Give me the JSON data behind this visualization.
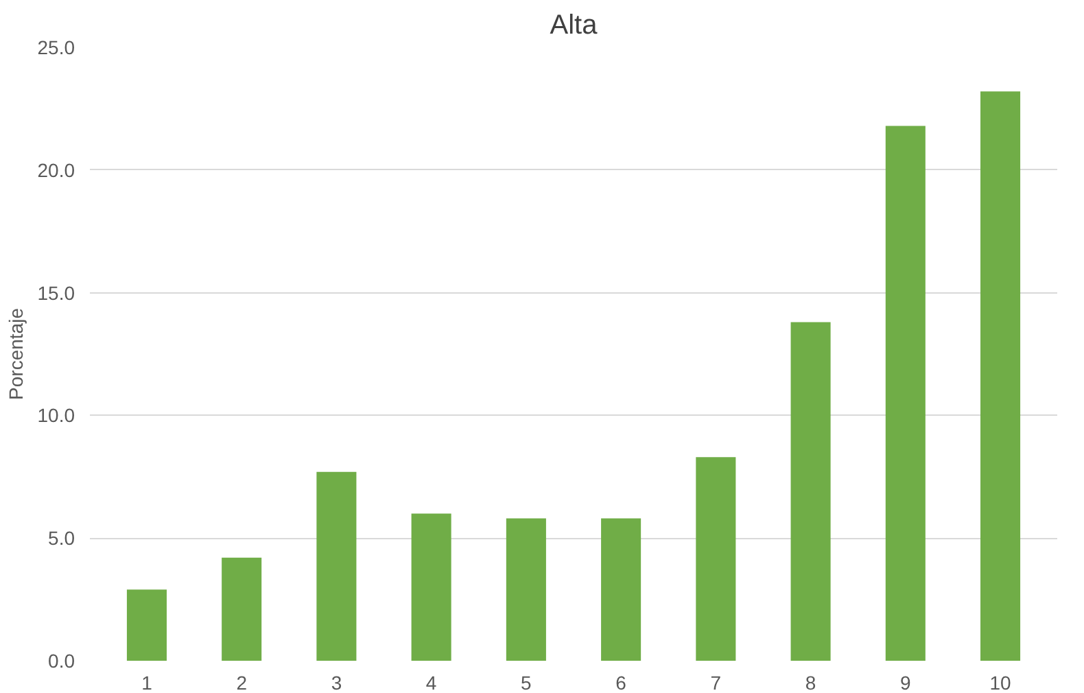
{
  "chart_data": {
    "type": "bar",
    "title": "Alta",
    "ylabel": "Porcentaje",
    "categories": [
      "1",
      "2",
      "3",
      "4",
      "5",
      "6",
      "7",
      "8",
      "9",
      "10"
    ],
    "values": [
      2.9,
      4.2,
      7.7,
      6.0,
      5.8,
      5.8,
      8.3,
      13.8,
      21.8,
      23.2
    ],
    "color": "#70ad47",
    "ylim": [
      0,
      25
    ],
    "yticks": [
      {
        "value": 0,
        "label": "0.0"
      },
      {
        "value": 5,
        "label": "5.0"
      },
      {
        "value": 10,
        "label": "10.0"
      },
      {
        "value": 15,
        "label": "15.0"
      },
      {
        "value": 20,
        "label": "20.0"
      },
      {
        "value": 25,
        "label": "25.0"
      }
    ],
    "grid": "y"
  }
}
